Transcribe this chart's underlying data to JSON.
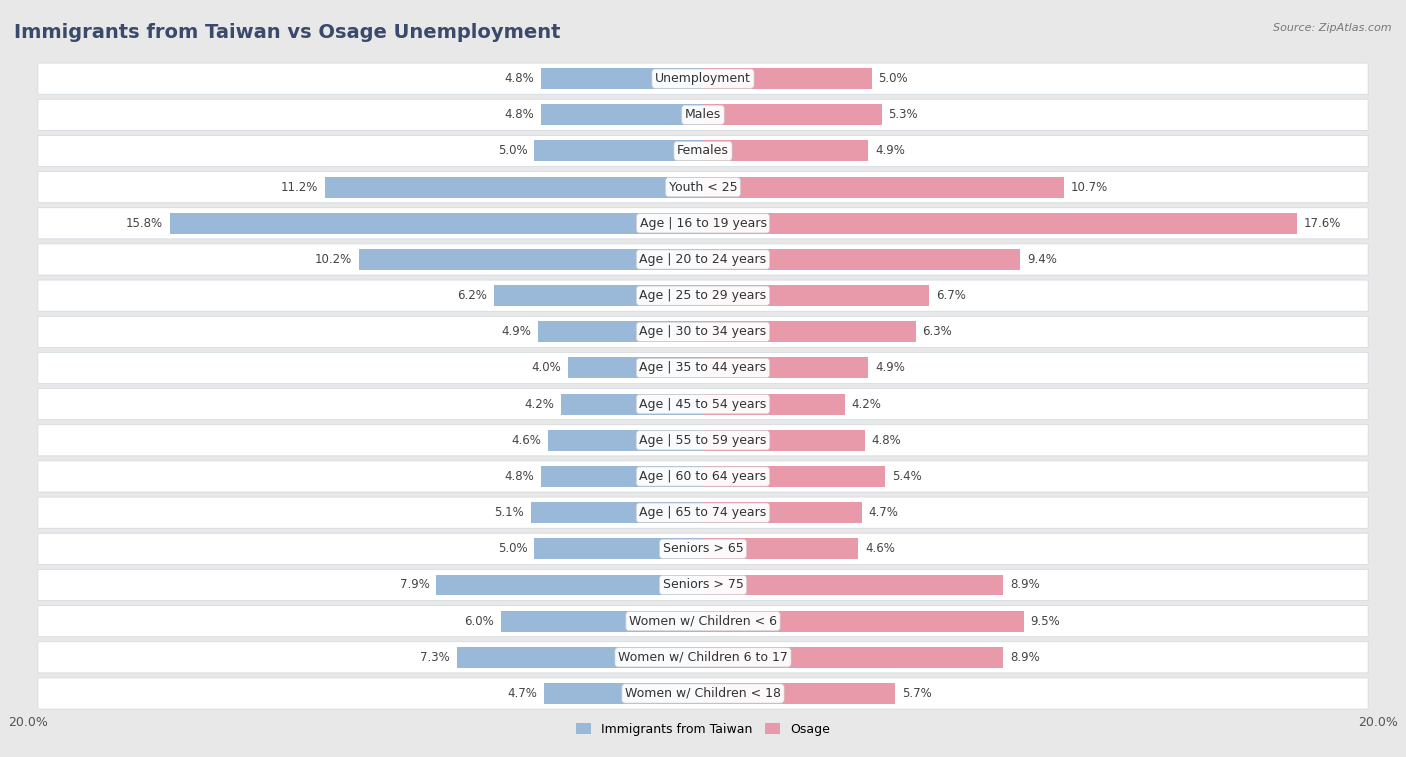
{
  "title": "Immigrants from Taiwan vs Osage Unemployment",
  "source": "Source: ZipAtlas.com",
  "categories": [
    "Unemployment",
    "Males",
    "Females",
    "Youth < 25",
    "Age | 16 to 19 years",
    "Age | 20 to 24 years",
    "Age | 25 to 29 years",
    "Age | 30 to 34 years",
    "Age | 35 to 44 years",
    "Age | 45 to 54 years",
    "Age | 55 to 59 years",
    "Age | 60 to 64 years",
    "Age | 65 to 74 years",
    "Seniors > 65",
    "Seniors > 75",
    "Women w/ Children < 6",
    "Women w/ Children 6 to 17",
    "Women w/ Children < 18"
  ],
  "taiwan_values": [
    4.8,
    4.8,
    5.0,
    11.2,
    15.8,
    10.2,
    6.2,
    4.9,
    4.0,
    4.2,
    4.6,
    4.8,
    5.1,
    5.0,
    7.9,
    6.0,
    7.3,
    4.7
  ],
  "osage_values": [
    5.0,
    5.3,
    4.9,
    10.7,
    17.6,
    9.4,
    6.7,
    6.3,
    4.9,
    4.2,
    4.8,
    5.4,
    4.7,
    4.6,
    8.9,
    9.5,
    8.9,
    5.7
  ],
  "taiwan_color": "#9ab8d8",
  "osage_color": "#e899aa",
  "taiwan_label": "Immigrants from Taiwan",
  "osage_label": "Osage",
  "axis_max": 20.0,
  "background_color": "#e8e8e8",
  "card_color": "#ffffff",
  "card_border_color": "#d0d8e0",
  "bar_height": 0.58,
  "title_fontsize": 14,
  "label_fontsize": 9,
  "value_fontsize": 8.5,
  "title_color": "#3a4a6b"
}
